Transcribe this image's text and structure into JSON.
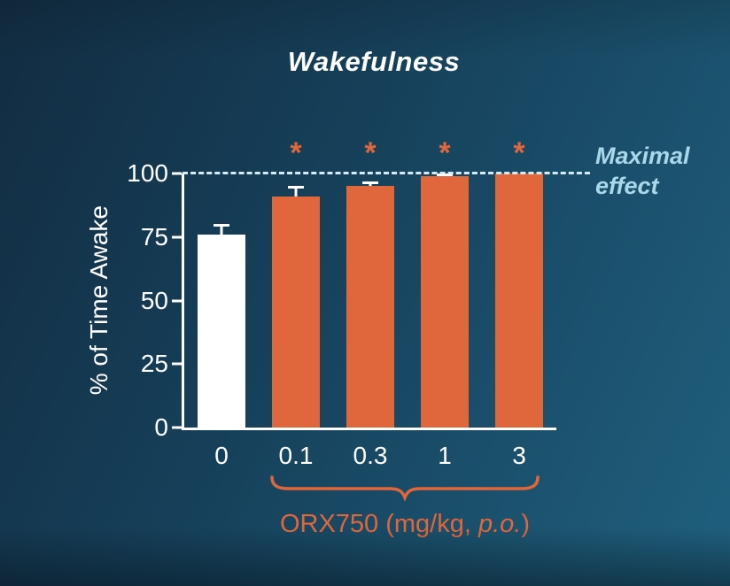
{
  "title": "Wakefulness",
  "annotations": {
    "maximal_line1": "Maximal",
    "maximal_line2": "effect"
  },
  "chart_data": {
    "type": "bar",
    "title": "Wakefulness",
    "categories": [
      "0",
      "0.1",
      "0.3",
      "1",
      "3"
    ],
    "values": [
      76,
      91,
      95,
      99,
      100
    ],
    "errors": [
      4,
      4,
      2,
      1,
      0
    ],
    "significance": [
      "",
      "*",
      "*",
      "*",
      "*"
    ],
    "ylabel": "% of Time Awake",
    "xlabel": "",
    "yticks": [
      0,
      25,
      50,
      75,
      100
    ],
    "ylim": [
      0,
      100
    ],
    "grid": false,
    "legend": "none",
    "reference_line": {
      "value": 100,
      "label": "Maximal effect",
      "style": "dashed"
    },
    "group_label": "ORX750 (mg/kg, p.o.)",
    "group_label_parts": {
      "prefix": "ORX750 (mg/kg, ",
      "italic": "p.o.",
      "suffix": ")"
    },
    "group_span_categories": [
      "0.1",
      "0.3",
      "1",
      "3"
    ],
    "bar_colors": [
      "#ffffff",
      "#e0663c",
      "#e0663c",
      "#e0663c",
      "#e0663c"
    ],
    "significance_color": "#e0663c"
  },
  "colors": {
    "background_dark": "#122c41",
    "background_light": "#1f607e",
    "axis": "#ffffff",
    "dashed_line": "#d5ecf6",
    "maximal_text": "#a9d8ea",
    "orange": "#e0663c"
  }
}
